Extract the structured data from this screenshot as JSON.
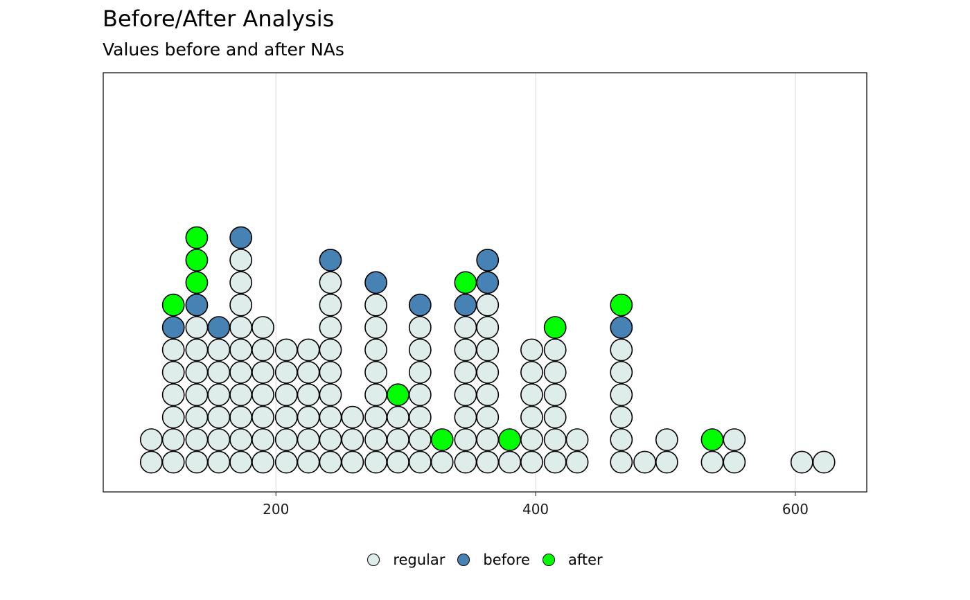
{
  "chart_data": {
    "type": "dotplot",
    "title": "Before/After Analysis",
    "subtitle": "Values before and after NAs",
    "xlabel": "",
    "ylabel": "",
    "xlim": [
      67,
      655
    ],
    "x_ticks": [
      200,
      400,
      600
    ],
    "x_tick_labels": [
      "200",
      "400",
      "600"
    ],
    "grid": "vertical-major",
    "legend_position": "bottom",
    "categories": [
      "regular",
      "before",
      "after"
    ],
    "colors": {
      "regular": "#deecea",
      "before": "#4682b4",
      "after": "#00ff00"
    },
    "bins": [
      {
        "x": 104,
        "stack": [
          "regular",
          "regular"
        ]
      },
      {
        "x": 121,
        "stack": [
          "regular",
          "regular",
          "regular",
          "regular",
          "regular",
          "regular",
          "before",
          "after"
        ]
      },
      {
        "x": 139,
        "stack": [
          "regular",
          "regular",
          "regular",
          "regular",
          "regular",
          "regular",
          "regular",
          "before",
          "after",
          "after",
          "after"
        ]
      },
      {
        "x": 156,
        "stack": [
          "regular",
          "regular",
          "regular",
          "regular",
          "regular",
          "regular",
          "before"
        ]
      },
      {
        "x": 173,
        "stack": [
          "regular",
          "regular",
          "regular",
          "regular",
          "regular",
          "regular",
          "regular",
          "regular",
          "regular",
          "regular",
          "before"
        ]
      },
      {
        "x": 190,
        "stack": [
          "regular",
          "regular",
          "regular",
          "regular",
          "regular",
          "regular",
          "regular"
        ]
      },
      {
        "x": 208,
        "stack": [
          "regular",
          "regular",
          "regular",
          "regular",
          "regular",
          "regular"
        ]
      },
      {
        "x": 225,
        "stack": [
          "regular",
          "regular",
          "regular",
          "regular",
          "regular",
          "regular"
        ]
      },
      {
        "x": 242,
        "stack": [
          "regular",
          "regular",
          "regular",
          "regular",
          "regular",
          "regular",
          "regular",
          "regular",
          "regular",
          "before"
        ]
      },
      {
        "x": 259,
        "stack": [
          "regular",
          "regular",
          "regular"
        ]
      },
      {
        "x": 277,
        "stack": [
          "regular",
          "regular",
          "regular",
          "regular",
          "regular",
          "regular",
          "regular",
          "regular",
          "before"
        ]
      },
      {
        "x": 294,
        "stack": [
          "regular",
          "regular",
          "regular",
          "after"
        ]
      },
      {
        "x": 311,
        "stack": [
          "regular",
          "regular",
          "regular",
          "regular",
          "regular",
          "regular",
          "regular",
          "before"
        ]
      },
      {
        "x": 328,
        "stack": [
          "regular",
          "after"
        ]
      },
      {
        "x": 346,
        "stack": [
          "regular",
          "regular",
          "regular",
          "regular",
          "regular",
          "regular",
          "regular",
          "before",
          "after"
        ]
      },
      {
        "x": 363,
        "stack": [
          "regular",
          "regular",
          "regular",
          "regular",
          "regular",
          "regular",
          "regular",
          "regular",
          "before",
          "before"
        ]
      },
      {
        "x": 380,
        "stack": [
          "regular",
          "after"
        ]
      },
      {
        "x": 397,
        "stack": [
          "regular",
          "regular",
          "regular",
          "regular",
          "regular",
          "regular"
        ]
      },
      {
        "x": 415,
        "stack": [
          "regular",
          "regular",
          "regular",
          "regular",
          "regular",
          "regular",
          "after"
        ]
      },
      {
        "x": 432,
        "stack": [
          "regular",
          "regular"
        ]
      },
      {
        "x": 466,
        "stack": [
          "regular",
          "regular",
          "regular",
          "regular",
          "regular",
          "regular",
          "before",
          "after"
        ]
      },
      {
        "x": 484,
        "stack": [
          "regular"
        ]
      },
      {
        "x": 501,
        "stack": [
          "regular",
          "regular"
        ]
      },
      {
        "x": 536,
        "stack": [
          "regular",
          "after"
        ]
      },
      {
        "x": 553,
        "stack": [
          "regular",
          "regular"
        ]
      },
      {
        "x": 605,
        "stack": [
          "regular"
        ]
      },
      {
        "x": 622,
        "stack": [
          "regular"
        ]
      }
    ]
  },
  "legend": {
    "items": [
      {
        "label": "regular",
        "color": "#deecea"
      },
      {
        "label": "before",
        "color": "#4682b4"
      },
      {
        "label": "after",
        "color": "#00ff00"
      }
    ]
  }
}
